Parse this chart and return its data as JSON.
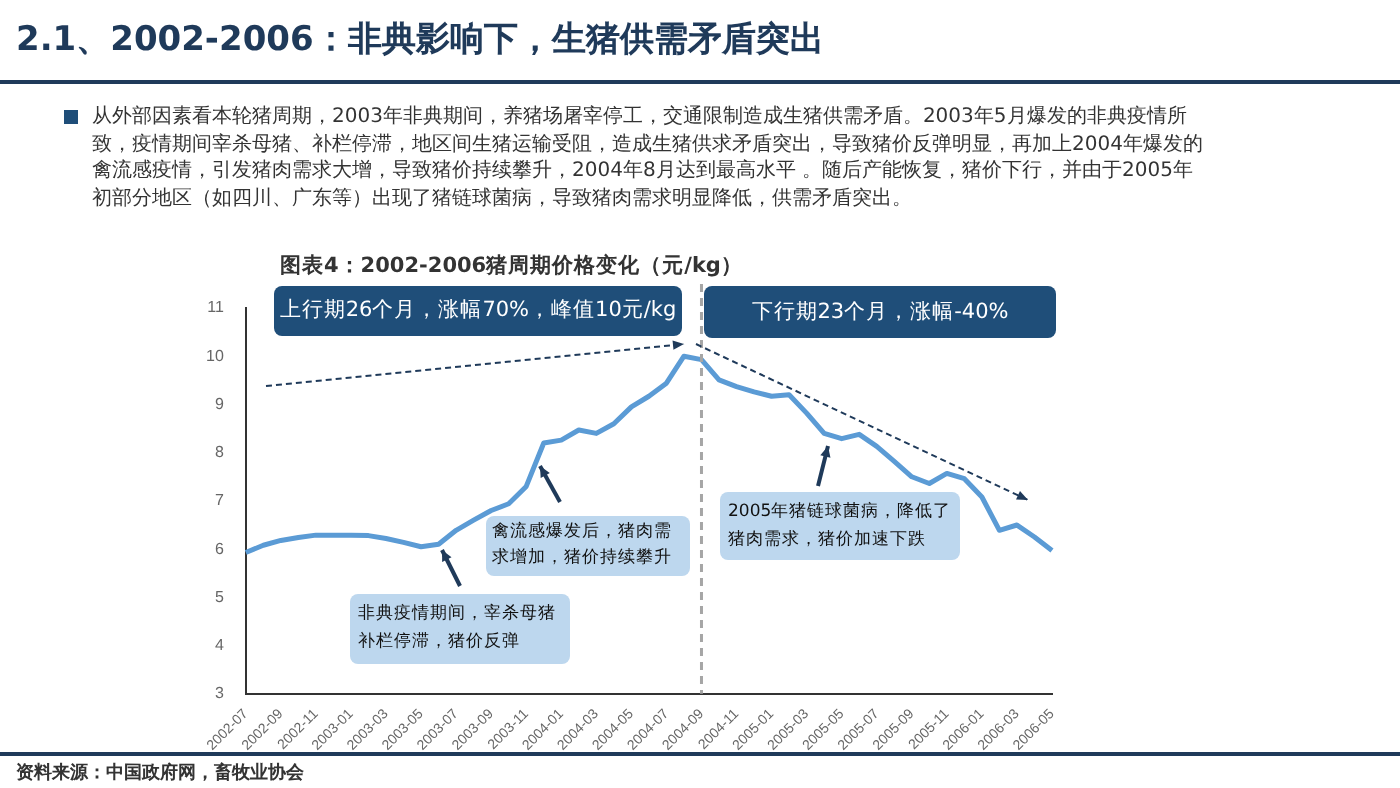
{
  "chart_data": {
    "type": "line",
    "title": "2.1、2002-2006：非典影响下，生猪供需矛盾突出",
    "subtitle": "从外部因素看本轮猪周期，2003年非典期间，养猪场屠宰停工，交通限制造成生猪供需矛盾。2003年5月爆发的非典疫情所致，疫情期间宰杀母猪、补栏停滞，地区间生猪运输受阻，造成生猪供求矛盾突出，导致猪价反弹明显，再加上2004年爆发的禽流感疫情，引发猪肉需求大增，导致猪价持续攀升，2004年8月达到最高水平 。随后产能恢复，猪价下行，并由于2005年初部分地区（如四川、广东等）出现了猪链球菌病，导致猪肉需求明显降低，供需矛盾突出。",
    "annotations": [
      "图表4：2002-2006猪周期价格变化（元/kg）",
      "上行期26个月，涨幅70%，峰值10元/kg",
      "下行期23个月，涨幅-40%",
      "非典疫情期间，宰杀母猪补栏停滞，猪价反弹",
      "禽流感爆发后，猪肉需求增加，猪价持续攀升",
      "2005年猪链球菌病，降低了猪肉需求，猪价加速下跌",
      "资料来源：中国政府网，畜牧业协会"
    ],
    "categories": [
      "2002-07",
      null,
      "2002-09",
      null,
      "2002-11",
      null,
      "2003-01",
      null,
      "2003-03",
      null,
      "2003-05",
      null,
      "2003-07",
      null,
      "2003-09",
      null,
      "2003-11",
      null,
      "2004-01",
      null,
      "2004-03",
      null,
      "2004-05",
      null,
      "2004-07",
      null,
      "2004-09",
      null,
      "2004-11",
      null,
      "2005-01",
      null,
      "2005-03",
      null,
      "2005-05",
      null,
      "2005-07",
      null,
      "2005-09",
      null,
      "2005-11",
      null,
      "2006-01",
      null,
      "2006-03",
      null,
      "2006-05"
    ],
    "series": [
      {
        "color": "#5b9bd5",
        "values": [
          5.93,
          6.08,
          6.18,
          6.24,
          6.29,
          6.29,
          6.29,
          6.28,
          6.22,
          6.14,
          6.05,
          6.1,
          6.39,
          6.6,
          6.8,
          6.94,
          7.3,
          8.2,
          8.26,
          8.47,
          8.4,
          8.6,
          8.95,
          9.17,
          9.44,
          10.0,
          9.93,
          9.51,
          9.37,
          9.26,
          9.17,
          9.2,
          8.82,
          8.4,
          8.29,
          8.38,
          8.13,
          7.82,
          7.5,
          7.36,
          7.57,
          7.46,
          7.08,
          6.39,
          6.5,
          6.25,
          5.97
        ]
      }
    ],
    "ylim": [
      3,
      11
    ],
    "yticks": [
      3,
      4,
      5,
      6,
      7,
      8,
      9,
      10,
      11
    ],
    "ref_lines": [
      {
        "axis": "x",
        "value": "2004-09",
        "color": "#a6a6a6",
        "line_style": "dashed"
      }
    ],
    "marker": "none",
    "grid": false,
    "legend": false
  }
}
